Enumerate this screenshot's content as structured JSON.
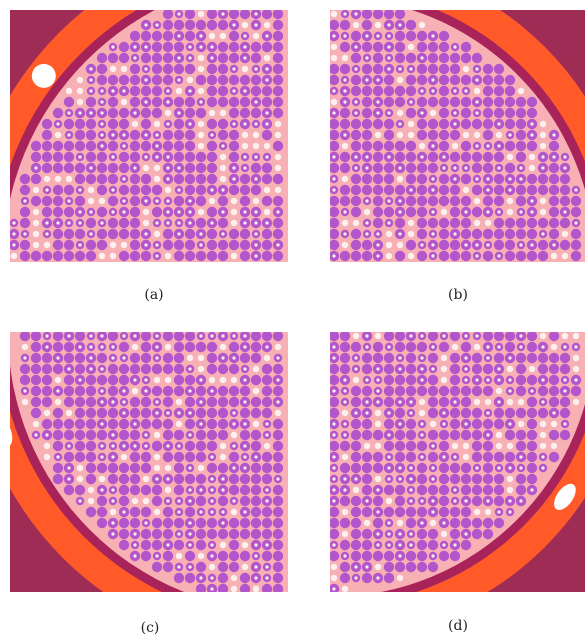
{
  "panels": [
    {
      "id": "a",
      "label": "(a)"
    },
    {
      "id": "b",
      "label": "(b)"
    },
    {
      "id": "c",
      "label": "(c)"
    },
    {
      "id": "d",
      "label": "(d)"
    }
  ],
  "colors": {
    "corner": "#9e2c55",
    "ring": "#ff5a28",
    "gap": "#ffffff",
    "vessel": "#a8235a",
    "moderator": "#f7b0b4",
    "pin": "#b356cc",
    "hole": "#fdf0f0"
  }
}
